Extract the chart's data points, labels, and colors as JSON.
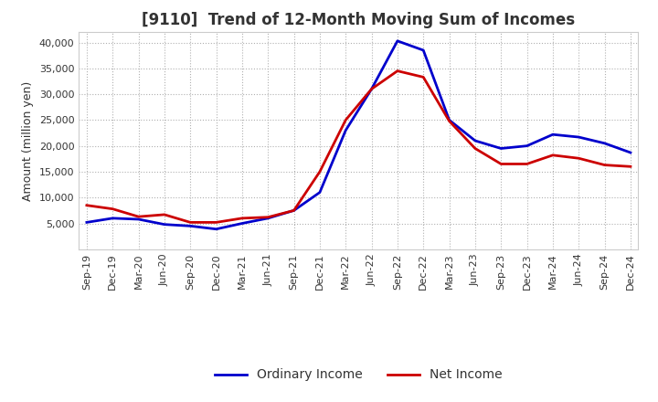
{
  "title": "[9110]  Trend of 12-Month Moving Sum of Incomes",
  "ylabel": "Amount (million yen)",
  "x_labels": [
    "Sep-19",
    "Dec-19",
    "Mar-20",
    "Jun-20",
    "Sep-20",
    "Dec-20",
    "Mar-21",
    "Jun-21",
    "Sep-21",
    "Dec-21",
    "Mar-22",
    "Jun-22",
    "Sep-22",
    "Dec-22",
    "Mar-23",
    "Jun-23",
    "Sep-23",
    "Dec-23",
    "Mar-24",
    "Jun-24",
    "Sep-24",
    "Dec-24"
  ],
  "ordinary_income": [
    5200,
    6000,
    5800,
    4800,
    4500,
    3900,
    5000,
    6000,
    7500,
    11000,
    23000,
    31000,
    40300,
    38500,
    25000,
    21000,
    19500,
    20000,
    22200,
    21700,
    20500,
    18700
  ],
  "net_income": [
    8500,
    7800,
    6300,
    6700,
    5200,
    5200,
    6000,
    6200,
    7500,
    15000,
    25000,
    31000,
    34500,
    33300,
    24800,
    19500,
    16500,
    16500,
    18200,
    17600,
    16300,
    16000
  ],
  "ordinary_color": "#0000cc",
  "net_color": "#cc0000",
  "line_width": 2.0,
  "ylim": [
    0,
    42000
  ],
  "yticks": [
    5000,
    10000,
    15000,
    20000,
    25000,
    30000,
    35000,
    40000
  ],
  "background_color": "#ffffff",
  "grid_color": "#b0b0b0",
  "title_fontsize": 12,
  "axis_fontsize": 9,
  "tick_fontsize": 8,
  "legend_fontsize": 10
}
